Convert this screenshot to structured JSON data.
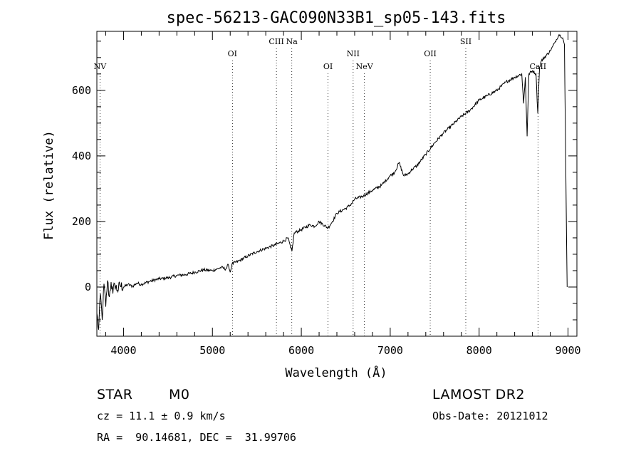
{
  "chart_data": {
    "type": "line",
    "title": "spec-56213-GAC090N33B1_sp05-143.fits",
    "xlabel": "Wavelength (Å)",
    "ylabel": "Flux (relative)",
    "xlim": [
      3700,
      9100
    ],
    "ylim": [
      -150,
      780
    ],
    "xticks": [
      4000,
      5000,
      6000,
      7000,
      8000,
      9000
    ],
    "xtick_labels": [
      "4000",
      "5000",
      "6000",
      "7000",
      "8000",
      "9000"
    ],
    "yticks": [
      0,
      200,
      400,
      600
    ],
    "ytick_labels": [
      "0",
      "200",
      "400",
      "600"
    ],
    "grid": false,
    "series": [
      {
        "name": "spectrum",
        "points": [
          [
            3700,
            -80
          ],
          [
            3720,
            -130
          ],
          [
            3740,
            -20
          ],
          [
            3760,
            -100
          ],
          [
            3780,
            10
          ],
          [
            3800,
            -60
          ],
          [
            3820,
            20
          ],
          [
            3840,
            -30
          ],
          [
            3860,
            15
          ],
          [
            3880,
            -20
          ],
          [
            3900,
            10
          ],
          [
            3930,
            -10
          ],
          [
            3960,
            5
          ],
          [
            4000,
            0
          ],
          [
            4050,
            8
          ],
          [
            4100,
            2
          ],
          [
            4150,
            12
          ],
          [
            4200,
            8
          ],
          [
            4300,
            18
          ],
          [
            4400,
            25
          ],
          [
            4500,
            28
          ],
          [
            4600,
            35
          ],
          [
            4700,
            38
          ],
          [
            4800,
            45
          ],
          [
            4900,
            52
          ],
          [
            5000,
            50
          ],
          [
            5100,
            60
          ],
          [
            5150,
            55
          ],
          [
            5180,
            68
          ],
          [
            5200,
            45
          ],
          [
            5220,
            70
          ],
          [
            5300,
            80
          ],
          [
            5400,
            95
          ],
          [
            5500,
            108
          ],
          [
            5600,
            118
          ],
          [
            5700,
            128
          ],
          [
            5800,
            140
          ],
          [
            5850,
            150
          ],
          [
            5880,
            120
          ],
          [
            5895,
            110
          ],
          [
            5920,
            165
          ],
          [
            6000,
            175
          ],
          [
            6100,
            190
          ],
          [
            6150,
            185
          ],
          [
            6200,
            200
          ],
          [
            6300,
            180
          ],
          [
            6350,
            200
          ],
          [
            6400,
            225
          ],
          [
            6500,
            240
          ],
          [
            6550,
            250
          ],
          [
            6600,
            268
          ],
          [
            6700,
            278
          ],
          [
            6800,
            295
          ],
          [
            6900,
            310
          ],
          [
            7000,
            340
          ],
          [
            7050,
            350
          ],
          [
            7100,
            380
          ],
          [
            7150,
            340
          ],
          [
            7200,
            345
          ],
          [
            7250,
            360
          ],
          [
            7300,
            370
          ],
          [
            7400,
            405
          ],
          [
            7500,
            440
          ],
          [
            7600,
            470
          ],
          [
            7700,
            495
          ],
          [
            7800,
            520
          ],
          [
            7900,
            540
          ],
          [
            8000,
            570
          ],
          [
            8100,
            585
          ],
          [
            8200,
            600
          ],
          [
            8300,
            625
          ],
          [
            8400,
            640
          ],
          [
            8480,
            650
          ],
          [
            8500,
            560
          ],
          [
            8520,
            640
          ],
          [
            8540,
            460
          ],
          [
            8560,
            650
          ],
          [
            8600,
            660
          ],
          [
            8640,
            650
          ],
          [
            8660,
            530
          ],
          [
            8680,
            670
          ],
          [
            8700,
            690
          ],
          [
            8800,
            720
          ],
          [
            8850,
            745
          ],
          [
            8900,
            770
          ],
          [
            8940,
            760
          ],
          [
            8960,
            740
          ],
          [
            8975,
            360
          ],
          [
            8990,
            0
          ]
        ]
      }
    ],
    "line_labels": [
      {
        "label": "NV",
        "x": 3735,
        "row": 3
      },
      {
        "label": "OI",
        "x": 5225,
        "row": 2
      },
      {
        "label": "CIII",
        "x": 5720,
        "row": 1
      },
      {
        "label": "Na",
        "x": 5893,
        "row": 1
      },
      {
        "label": "OI",
        "x": 6300,
        "row": 3
      },
      {
        "label": "NII",
        "x": 6583,
        "row": 2
      },
      {
        "label": "NeV",
        "x": 6710,
        "row": 3
      },
      {
        "label": "OII",
        "x": 7450,
        "row": 2
      },
      {
        "label": "SII",
        "x": 7850,
        "row": 1
      },
      {
        "label": "CaII",
        "x": 8662,
        "row": 3
      }
    ]
  },
  "info": {
    "object_class": "STAR",
    "subclass": "M0",
    "survey": "LAMOST DR2",
    "cz": "cz = 11.1 ± 0.9 km/s",
    "obs_date": "Obs-Date: 20121012",
    "coords": "RA =  90.14681, DEC =  31.99706"
  }
}
